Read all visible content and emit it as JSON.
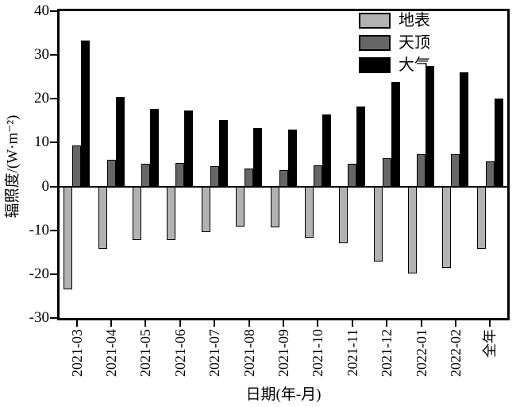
{
  "chart_data": {
    "type": "bar",
    "title": "",
    "xlabel": "日期(年-月)",
    "ylabel": "辐照度/(W·m⁻²)",
    "categories": [
      "2021-03",
      "2021-04",
      "2021-05",
      "2021-06",
      "2021-07",
      "2021-08",
      "2021-09",
      "2021-10",
      "2021-11",
      "2021-12",
      "2022-01",
      "2022-02",
      "全年"
    ],
    "series": [
      {
        "name": "地表",
        "color": "#b2b2b2",
        "values": [
          -23.5,
          -14.3,
          -12.3,
          -12.2,
          -10.4,
          -9.1,
          -9.3,
          -11.7,
          -13.0,
          -17.1,
          -19.9,
          -18.5,
          -14.2
        ]
      },
      {
        "name": "天顶",
        "color": "#666666",
        "values": [
          9.4,
          6.1,
          5.2,
          5.3,
          4.6,
          4.1,
          3.7,
          4.8,
          5.1,
          6.5,
          7.4,
          7.4,
          5.8
        ]
      },
      {
        "name": "大气",
        "color": "#000000",
        "values": [
          33.2,
          20.4,
          17.7,
          17.4,
          15.1,
          13.3,
          13.0,
          16.5,
          18.2,
          23.9,
          27.5,
          26.1,
          20.1
        ]
      }
    ],
    "ylim": [
      -30,
      40
    ],
    "yticks": [
      40,
      30,
      20,
      10,
      0,
      -10,
      -20,
      -30
    ],
    "baseline": 0,
    "grid": false,
    "legend_position": "top-right-inside",
    "frame_color": "#000000",
    "background_color": "#ffffff"
  }
}
